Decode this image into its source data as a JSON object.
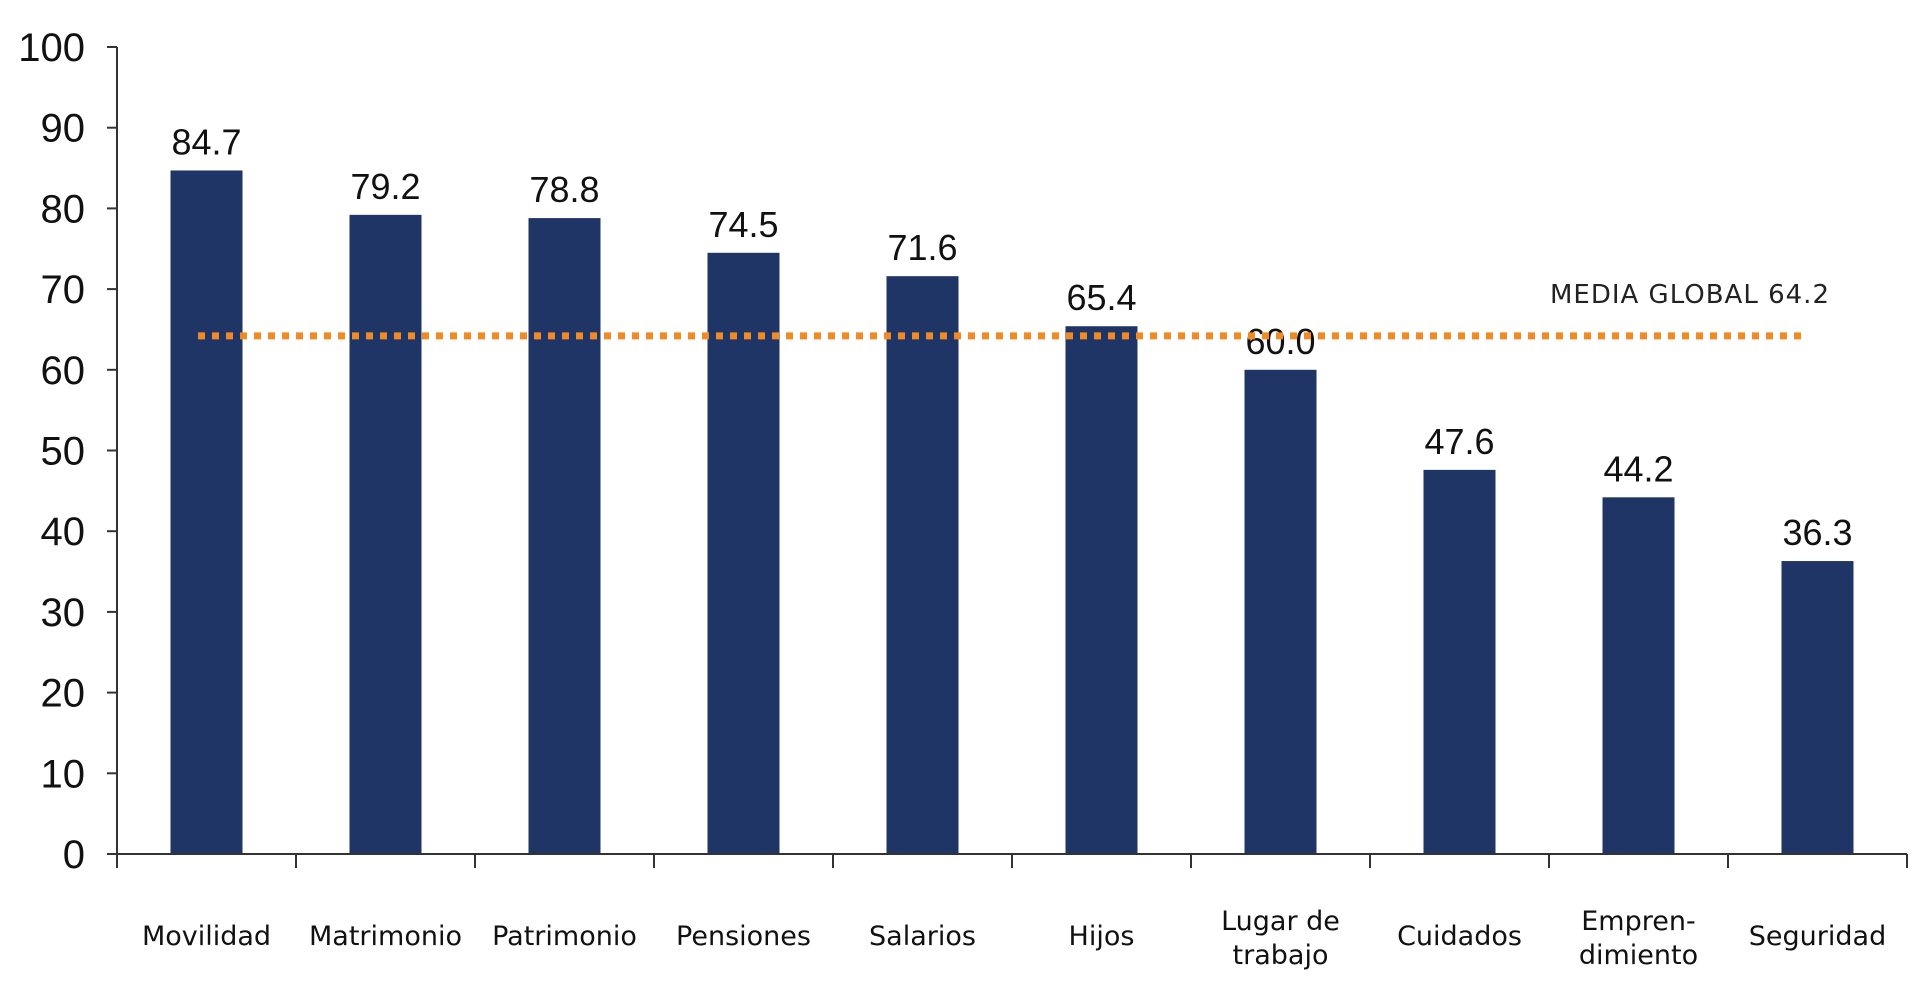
{
  "chart_data": {
    "type": "bar",
    "title": "",
    "xlabel": "",
    "ylabel": "",
    "ylim": [
      0,
      100
    ],
    "yticks": [
      0,
      10,
      20,
      30,
      40,
      50,
      60,
      70,
      80,
      90,
      100
    ],
    "categories": [
      [
        "Movilidad"
      ],
      [
        "Matrimonio"
      ],
      [
        "Patrimonio"
      ],
      [
        "Pensiones"
      ],
      [
        "Salarios"
      ],
      [
        "Hijos"
      ],
      [
        "Lugar de",
        "trabajo"
      ],
      [
        "Cuidados"
      ],
      [
        "Empren-",
        "dimiento"
      ],
      [
        "Seguridad"
      ]
    ],
    "values": [
      84.7,
      79.2,
      78.8,
      74.5,
      71.6,
      65.4,
      60.0,
      47.6,
      44.2,
      36.3
    ],
    "value_labels": [
      "84.7",
      "79.2",
      "78.8",
      "74.5",
      "71.6",
      "65.4",
      "60.0",
      "47.6",
      "44.2",
      "36.3"
    ],
    "reference_line": {
      "label": "MEDIA GLOBAL 64.2",
      "value": 64.2,
      "style": "dotted"
    },
    "colors": {
      "bar": "#1f3566",
      "reference_line": "#f08a24",
      "axis": "#333333"
    }
  }
}
